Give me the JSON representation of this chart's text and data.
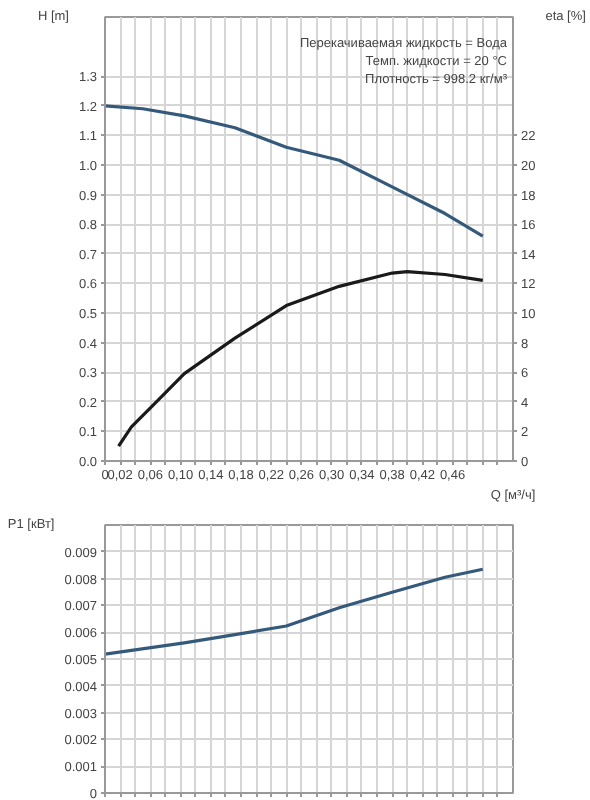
{
  "chart_data": [
    {
      "type": "line",
      "xlabel": "Q [м³/ч]",
      "ylabel": "H [m]",
      "y2label": "eta [%]",
      "annotations": [
        "Перекачиваемая жидкость = Вода",
        "Темп. жидкости = 20 °C",
        "Плотность = 998.2 кг/м³"
      ],
      "series": [
        {
          "color": "#35597a",
          "x": [
            0,
            0.05,
            0.105,
            0.172,
            0.24,
            0.31,
            0.38,
            0.45,
            0.5
          ],
          "values": [
            1.2,
            1.19,
            1.166,
            1.126,
            1.06,
            1.016,
            0.926,
            0.836,
            0.76
          ]
        },
        {
          "color": "#1a1a1a",
          "axis": "y2",
          "x": [
            0.018,
            0.035,
            0.07,
            0.105,
            0.172,
            0.24,
            0.31,
            0.38,
            0.4,
            0.45,
            0.5
          ],
          "values": [
            1.0,
            2.3,
            4.1,
            5.9,
            8.3,
            10.5,
            11.8,
            12.7,
            12.8,
            12.6,
            12.2
          ]
        }
      ],
      "xlim": [
        0,
        0.54
      ],
      "xticks": [
        0,
        {
          "value": 0.02,
          "label": "0,02"
        },
        {
          "value": 0.04,
          "label": null
        },
        {
          "value": 0.06,
          "label": "0,06"
        },
        {
          "value": 0.08,
          "label": null
        },
        {
          "value": 0.1,
          "label": "0,10"
        },
        {
          "value": 0.12,
          "label": null
        },
        {
          "value": 0.14,
          "label": "0,14"
        },
        {
          "value": 0.16,
          "label": null
        },
        {
          "value": 0.18,
          "label": "0,18"
        },
        {
          "value": 0.2,
          "label": null
        },
        {
          "value": 0.22,
          "label": "0,22"
        },
        {
          "value": 0.24,
          "label": null
        },
        {
          "value": 0.26,
          "label": "0,26"
        },
        {
          "value": 0.28,
          "label": null
        },
        {
          "value": 0.3,
          "label": "0,30"
        },
        {
          "value": 0.32,
          "label": null
        },
        {
          "value": 0.34,
          "label": "0,34"
        },
        {
          "value": 0.36,
          "label": null
        },
        {
          "value": 0.38,
          "label": "0,38"
        },
        {
          "value": 0.4,
          "label": null
        },
        {
          "value": 0.42,
          "label": "0,42"
        },
        {
          "value": 0.44,
          "label": null
        },
        {
          "value": 0.46,
          "label": "0,46"
        },
        {
          "value": 0.48,
          "label": null
        },
        {
          "value": 0.5,
          "label": null
        },
        {
          "value": 0.52,
          "label": null
        }
      ],
      "ylim": [
        0,
        1.5
      ],
      "yticks": [
        {
          "value": 0,
          "label": "0.0"
        },
        0.1,
        0.2,
        0.3,
        0.4,
        0.5,
        0.6,
        0.7,
        0.8,
        0.9,
        {
          "value": 1,
          "label": "1.0"
        },
        1.1,
        1.2,
        1.3
      ],
      "y2lim": [
        0,
        30
      ],
      "y2ticks": [
        0,
        2,
        4,
        6,
        8,
        10,
        12,
        14,
        16,
        18,
        20,
        22
      ],
      "grid": true,
      "line_style": "solid",
      "marker": "none"
    },
    {
      "type": "line",
      "ylabel": "P1 [кВт]",
      "series": [
        {
          "color": "#35597a",
          "x": [
            0,
            0.105,
            0.172,
            0.24,
            0.31,
            0.38,
            0.45,
            0.5
          ],
          "values": [
            0.00518,
            0.0056,
            0.00591,
            0.00623,
            0.00691,
            0.00749,
            0.00805,
            0.00835
          ]
        }
      ],
      "xlim": [
        0,
        0.54
      ],
      "xticks": [
        {
          "value": 0,
          "label": null
        },
        {
          "value": 0.02,
          "label": null
        },
        {
          "value": 0.04,
          "label": null
        },
        {
          "value": 0.06,
          "label": null
        },
        {
          "value": 0.08,
          "label": null
        },
        {
          "value": 0.1,
          "label": null
        },
        {
          "value": 0.12,
          "label": null
        },
        {
          "value": 0.14,
          "label": null
        },
        {
          "value": 0.16,
          "label": null
        },
        {
          "value": 0.18,
          "label": null
        },
        {
          "value": 0.2,
          "label": null
        },
        {
          "value": 0.22,
          "label": null
        },
        {
          "value": 0.24,
          "label": null
        },
        {
          "value": 0.26,
          "label": null
        },
        {
          "value": 0.28,
          "label": null
        },
        {
          "value": 0.3,
          "label": null
        },
        {
          "value": 0.32,
          "label": null
        },
        {
          "value": 0.34,
          "label": null
        },
        {
          "value": 0.36,
          "label": null
        },
        {
          "value": 0.38,
          "label": null
        },
        {
          "value": 0.4,
          "label": null
        },
        {
          "value": 0.42,
          "label": null
        },
        {
          "value": 0.44,
          "label": null
        },
        {
          "value": 0.46,
          "label": null
        },
        {
          "value": 0.48,
          "label": null
        },
        {
          "value": 0.5,
          "label": null
        },
        {
          "value": 0.52,
          "label": null
        }
      ],
      "ylim": [
        0,
        0.01
      ],
      "yticks": [
        0,
        0.001,
        0.002,
        0.003,
        0.004,
        0.005,
        0.006,
        0.007,
        0.008,
        0.009
      ],
      "grid": true,
      "tick_labels": "y",
      "line_style": "solid",
      "marker": "none"
    }
  ]
}
